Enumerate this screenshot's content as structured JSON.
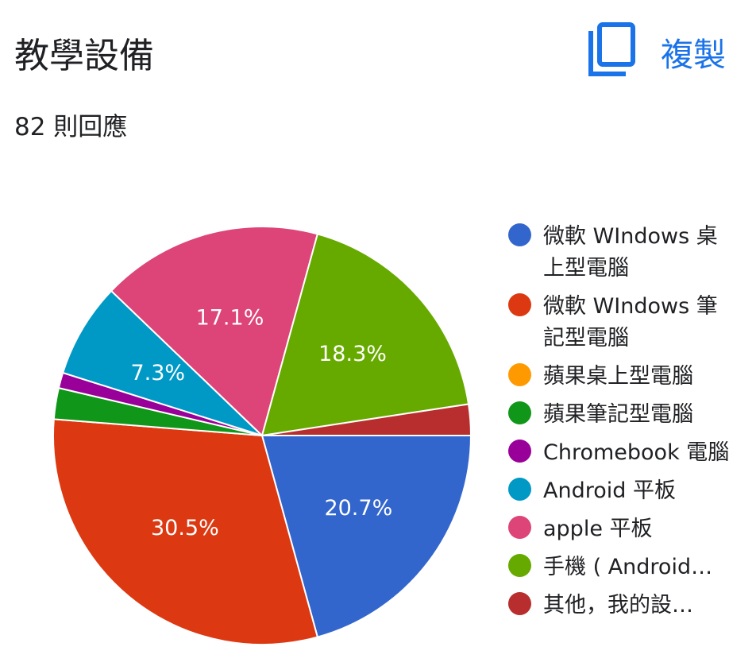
{
  "header": {
    "title": "教學設備",
    "response_count": "82 則回應",
    "copy_label": "複製"
  },
  "colors": {
    "accent": "#1a73e8"
  },
  "chart_data": {
    "type": "pie",
    "categories": [
      "微軟 WIndows 桌上型電腦",
      "微軟 WIndows 筆記型電腦",
      "蘋果桌上型電腦",
      "蘋果筆記型電腦",
      "Chromebook 電腦",
      "Android 平板",
      "apple 平板",
      "手機 ( Android…",
      "其他，我的設…"
    ],
    "values": [
      20.7,
      30.5,
      0,
      2.4,
      1.2,
      7.3,
      17.1,
      18.3,
      2.4
    ],
    "data_labels": [
      "20.7%",
      "30.5%",
      "",
      "",
      "",
      "7.3%",
      "17.1%",
      "18.3%",
      ""
    ],
    "colors": [
      "#3366cc",
      "#dc3912",
      "#ff9900",
      "#109618",
      "#990099",
      "#0099c6",
      "#dd4477",
      "#66aa00",
      "#b82e2e"
    ],
    "legend_position": "right"
  }
}
